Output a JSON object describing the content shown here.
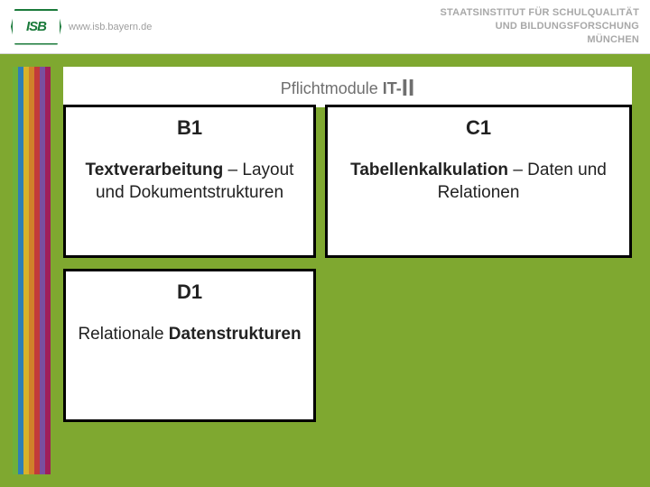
{
  "header": {
    "logo_text": "ISB",
    "url": "www.isb.bayern.de",
    "line1": "STAATSINSTITUT FÜR SCHULQUALITÄT",
    "line2": "UND BILDUNGSFORSCHUNG",
    "line3": "MÜNCHEN"
  },
  "title": {
    "prefix": "Pflichtmodule ",
    "it": "IT-",
    "suffix": "II"
  },
  "rainbow_colors": [
    "#6fb03a",
    "#2f7fb6",
    "#d9b22a",
    "#d0802a",
    "#c23a3a",
    "#7a4fa0",
    "#a01f5a"
  ],
  "modules": {
    "b1": {
      "code": "B1",
      "bold": "Textverarbeitung",
      "rest": " – Layout und Dokumentstrukturen"
    },
    "c1": {
      "code": "C1",
      "bold": "Tabellenkalkulation",
      "rest": " – Daten und Relationen"
    },
    "d1": {
      "code": "D1",
      "plain": "Relationale ",
      "bold": "Datenstrukturen"
    }
  },
  "background_color": "#7fa830"
}
